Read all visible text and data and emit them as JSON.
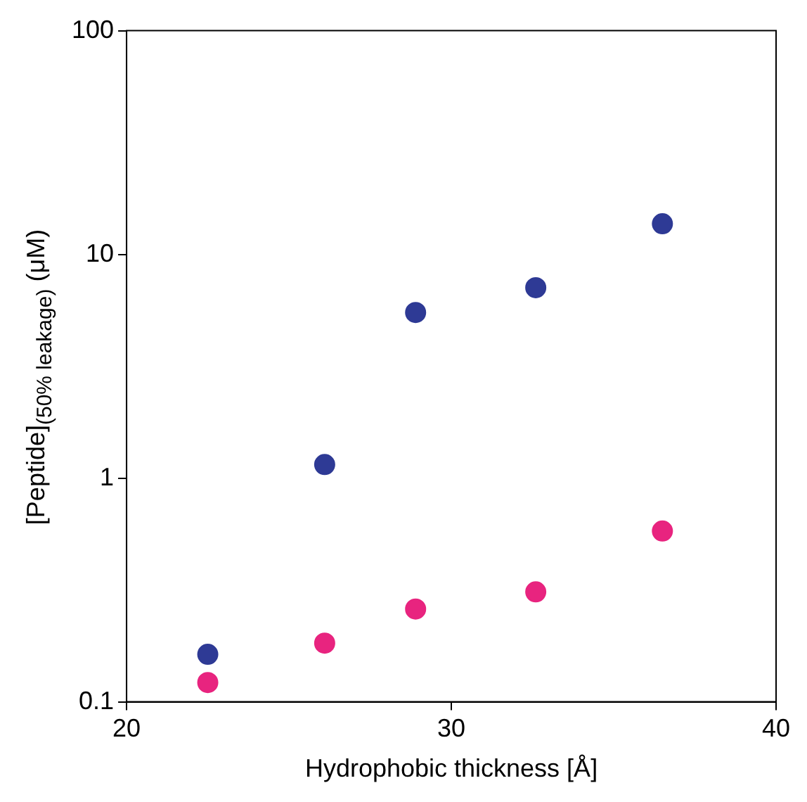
{
  "chart_data": {
    "type": "scatter",
    "xlabel": "Hydrophobic thickness [Å]",
    "ylabel": "[Peptide]$_{(50% leakage)}$ (μM)",
    "log": "y",
    "xlim": [
      20,
      40
    ],
    "xticks": [
      20,
      30,
      40
    ],
    "ylim": [
      0.1,
      100
    ],
    "yticks": [
      0.1,
      1,
      10,
      100
    ],
    "grid": false,
    "legend": false,
    "marker": "circle",
    "series": [
      {
        "color": "#2e3a95",
        "x": [
          22.5,
          26.1,
          28.9,
          32.6,
          36.5
        ],
        "values": [
          0.163,
          1.15,
          5.5,
          7.1,
          13.7
        ]
      },
      {
        "color": "#e8247f",
        "x": [
          22.5,
          26.1,
          28.9,
          32.6,
          36.5
        ],
        "values": [
          0.122,
          0.183,
          0.26,
          0.31,
          0.58
        ]
      }
    ]
  }
}
